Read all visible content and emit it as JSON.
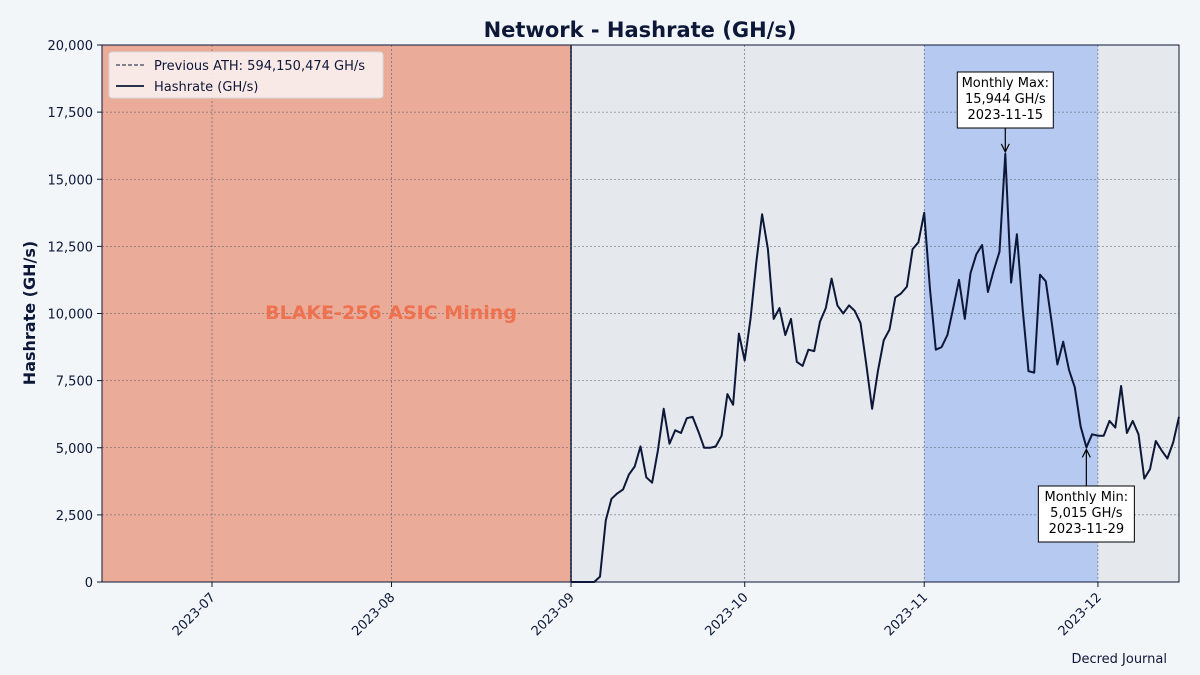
{
  "chart_data": {
    "type": "line",
    "title": "Network - Hashrate (GH/s)",
    "xlabel": "",
    "ylabel": "Hashrate (GH/s)",
    "xlim": [
      "2023-06-12",
      "2023-12-15"
    ],
    "ylim": [
      0,
      20000
    ],
    "y_ticks": [
      "0",
      "2,500",
      "5,000",
      "7,500",
      "10,000",
      "12,500",
      "15,000",
      "17,500",
      "20,000"
    ],
    "x_ticks": [
      {
        "date": "2023-07-01",
        "label": "2023-07"
      },
      {
        "date": "2023-08-01",
        "label": "2023-08"
      },
      {
        "date": "2023-09-01",
        "label": "2023-09"
      },
      {
        "date": "2023-10-01",
        "label": "2023-10"
      },
      {
        "date": "2023-11-01",
        "label": "2023-11"
      },
      {
        "date": "2023-12-01",
        "label": "2023-12"
      }
    ],
    "grid": true,
    "legend_position": "top-left",
    "legend": [
      {
        "label": "Previous ATH: 594,150,474 GH/s",
        "style": "dashed"
      },
      {
        "label": "Hashrate (GH/s)",
        "style": "solid"
      }
    ],
    "shaded_regions": [
      {
        "start": "2023-06-12",
        "end": "2023-09-01",
        "label": "BLAKE-256 ASIC Mining",
        "color": "#eaab98",
        "label_color": "#ee7150"
      },
      {
        "start": "2023-11-01",
        "end": "2023-12-01",
        "label": "",
        "color": "#b5c9f1"
      }
    ],
    "annotations": [
      {
        "label": "Monthly Max:\n15,944 GH/s\n2023-11-15",
        "date": "2023-11-15",
        "value": 15944,
        "position": "above"
      },
      {
        "label": "Monthly Min:\n5,015 GH/s\n2023-11-29",
        "date": "2023-11-29",
        "value": 5015,
        "position": "below"
      }
    ],
    "series": [
      {
        "name": "Hashrate (GH/s)",
        "color": "#0d1738",
        "points": [
          [
            "2023-09-01",
            0
          ],
          [
            "2023-09-02",
            0
          ],
          [
            "2023-09-03",
            0
          ],
          [
            "2023-09-04",
            0
          ],
          [
            "2023-09-05",
            0
          ],
          [
            "2023-09-06",
            200
          ],
          [
            "2023-09-07",
            2300
          ],
          [
            "2023-09-08",
            3100
          ],
          [
            "2023-09-09",
            3300
          ],
          [
            "2023-09-10",
            3450
          ],
          [
            "2023-09-11",
            4000
          ],
          [
            "2023-09-12",
            4300
          ],
          [
            "2023-09-13",
            5050
          ],
          [
            "2023-09-14",
            3900
          ],
          [
            "2023-09-15",
            3700
          ],
          [
            "2023-09-16",
            4900
          ],
          [
            "2023-09-17",
            6450
          ],
          [
            "2023-09-18",
            5150
          ],
          [
            "2023-09-19",
            5650
          ],
          [
            "2023-09-20",
            5550
          ],
          [
            "2023-09-21",
            6100
          ],
          [
            "2023-09-22",
            6150
          ],
          [
            "2023-09-23",
            5600
          ],
          [
            "2023-09-24",
            5000
          ],
          [
            "2023-09-25",
            5000
          ],
          [
            "2023-09-26",
            5050
          ],
          [
            "2023-09-27",
            5450
          ],
          [
            "2023-09-28",
            7000
          ],
          [
            "2023-09-29",
            6600
          ],
          [
            "2023-09-30",
            9250
          ],
          [
            "2023-10-01",
            8250
          ],
          [
            "2023-10-02",
            9800
          ],
          [
            "2023-10-03",
            11900
          ],
          [
            "2023-10-04",
            13700
          ],
          [
            "2023-10-05",
            12400
          ],
          [
            "2023-10-06",
            9800
          ],
          [
            "2023-10-07",
            10200
          ],
          [
            "2023-10-08",
            9200
          ],
          [
            "2023-10-09",
            9800
          ],
          [
            "2023-10-10",
            8200
          ],
          [
            "2023-10-11",
            8050
          ],
          [
            "2023-10-12",
            8650
          ],
          [
            "2023-10-13",
            8600
          ],
          [
            "2023-10-14",
            9700
          ],
          [
            "2023-10-15",
            10200
          ],
          [
            "2023-10-16",
            11300
          ],
          [
            "2023-10-17",
            10300
          ],
          [
            "2023-10-18",
            10000
          ],
          [
            "2023-10-19",
            10300
          ],
          [
            "2023-10-20",
            10100
          ],
          [
            "2023-10-21",
            9650
          ],
          [
            "2023-10-22",
            8100
          ],
          [
            "2023-10-23",
            6450
          ],
          [
            "2023-10-24",
            7850
          ],
          [
            "2023-10-25",
            9000
          ],
          [
            "2023-10-26",
            9400
          ],
          [
            "2023-10-27",
            10600
          ],
          [
            "2023-10-28",
            10750
          ],
          [
            "2023-10-29",
            11000
          ],
          [
            "2023-10-30",
            12400
          ],
          [
            "2023-10-31",
            12650
          ],
          [
            "2023-11-01",
            13750
          ],
          [
            "2023-11-02",
            10900
          ],
          [
            "2023-11-03",
            8650
          ],
          [
            "2023-11-04",
            8750
          ],
          [
            "2023-11-05",
            9200
          ],
          [
            "2023-11-06",
            10200
          ],
          [
            "2023-11-07",
            11250
          ],
          [
            "2023-11-08",
            9800
          ],
          [
            "2023-11-09",
            11500
          ],
          [
            "2023-11-10",
            12200
          ],
          [
            "2023-11-11",
            12550
          ],
          [
            "2023-11-12",
            10800
          ],
          [
            "2023-11-13",
            11600
          ],
          [
            "2023-11-14",
            12300
          ],
          [
            "2023-11-15",
            15944
          ],
          [
            "2023-11-16",
            11150
          ],
          [
            "2023-11-17",
            12950
          ],
          [
            "2023-11-18",
            10150
          ],
          [
            "2023-11-19",
            7850
          ],
          [
            "2023-11-20",
            7800
          ],
          [
            "2023-11-21",
            11450
          ],
          [
            "2023-11-22",
            11200
          ],
          [
            "2023-11-23",
            9700
          ],
          [
            "2023-11-24",
            8100
          ],
          [
            "2023-11-25",
            8950
          ],
          [
            "2023-11-26",
            7900
          ],
          [
            "2023-11-27",
            7250
          ],
          [
            "2023-11-28",
            5800
          ],
          [
            "2023-11-29",
            5015
          ],
          [
            "2023-11-30",
            5500
          ],
          [
            "2023-12-01",
            5450
          ],
          [
            "2023-12-02",
            5450
          ],
          [
            "2023-12-03",
            6000
          ],
          [
            "2023-12-04",
            5750
          ],
          [
            "2023-12-05",
            7300
          ],
          [
            "2023-12-06",
            5550
          ],
          [
            "2023-12-07",
            6000
          ],
          [
            "2023-12-08",
            5500
          ],
          [
            "2023-12-09",
            3850
          ],
          [
            "2023-12-10",
            4200
          ],
          [
            "2023-12-11",
            5250
          ],
          [
            "2023-12-12",
            4900
          ],
          [
            "2023-12-13",
            4600
          ],
          [
            "2023-12-14",
            5200
          ],
          [
            "2023-12-15",
            6150
          ]
        ]
      }
    ]
  },
  "footer": {
    "attribution": "Decred Journal"
  }
}
